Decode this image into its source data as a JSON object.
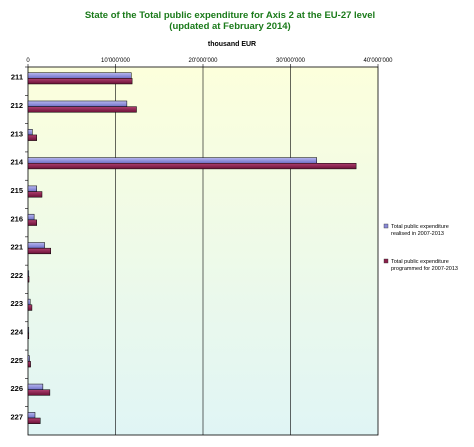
{
  "chart_data": {
    "type": "bar",
    "orientation": "horizontal",
    "title_line1": "State of the Total public  expenditure  for Axis 2 at the EU-27  level",
    "title_line2": "(updated at February 2014)",
    "unit_label": "thousand EUR",
    "x_ticks": [
      "0",
      "10'000'000",
      "20'000'000",
      "30'000'000",
      "40'000'000"
    ],
    "xlim": [
      0,
      40000000
    ],
    "grid": true,
    "legend_position": "right",
    "categories": [
      "211",
      "212",
      "213",
      "214",
      "215",
      "216",
      "221",
      "222",
      "223",
      "224",
      "225",
      "226",
      "227"
    ],
    "series": [
      {
        "name": "Total public expenditure realised in 2007-2013",
        "color": "#8a8ad8",
        "values": [
          11800000,
          11300000,
          500000,
          33000000,
          1000000,
          700000,
          1900000,
          50000,
          250000,
          30000,
          180000,
          1700000,
          800000
        ]
      },
      {
        "name": "Total public expenditure programmed for 2007-2013",
        "color": "#8b1f4a",
        "values": [
          11900000,
          12400000,
          1000000,
          37500000,
          1600000,
          1000000,
          2600000,
          120000,
          450000,
          80000,
          300000,
          2500000,
          1400000
        ]
      }
    ],
    "colors": {
      "title": "#1a7a1a",
      "plot_bg_top": "#fcffdc",
      "plot_bg_bottom": "#e0f5f5"
    }
  }
}
